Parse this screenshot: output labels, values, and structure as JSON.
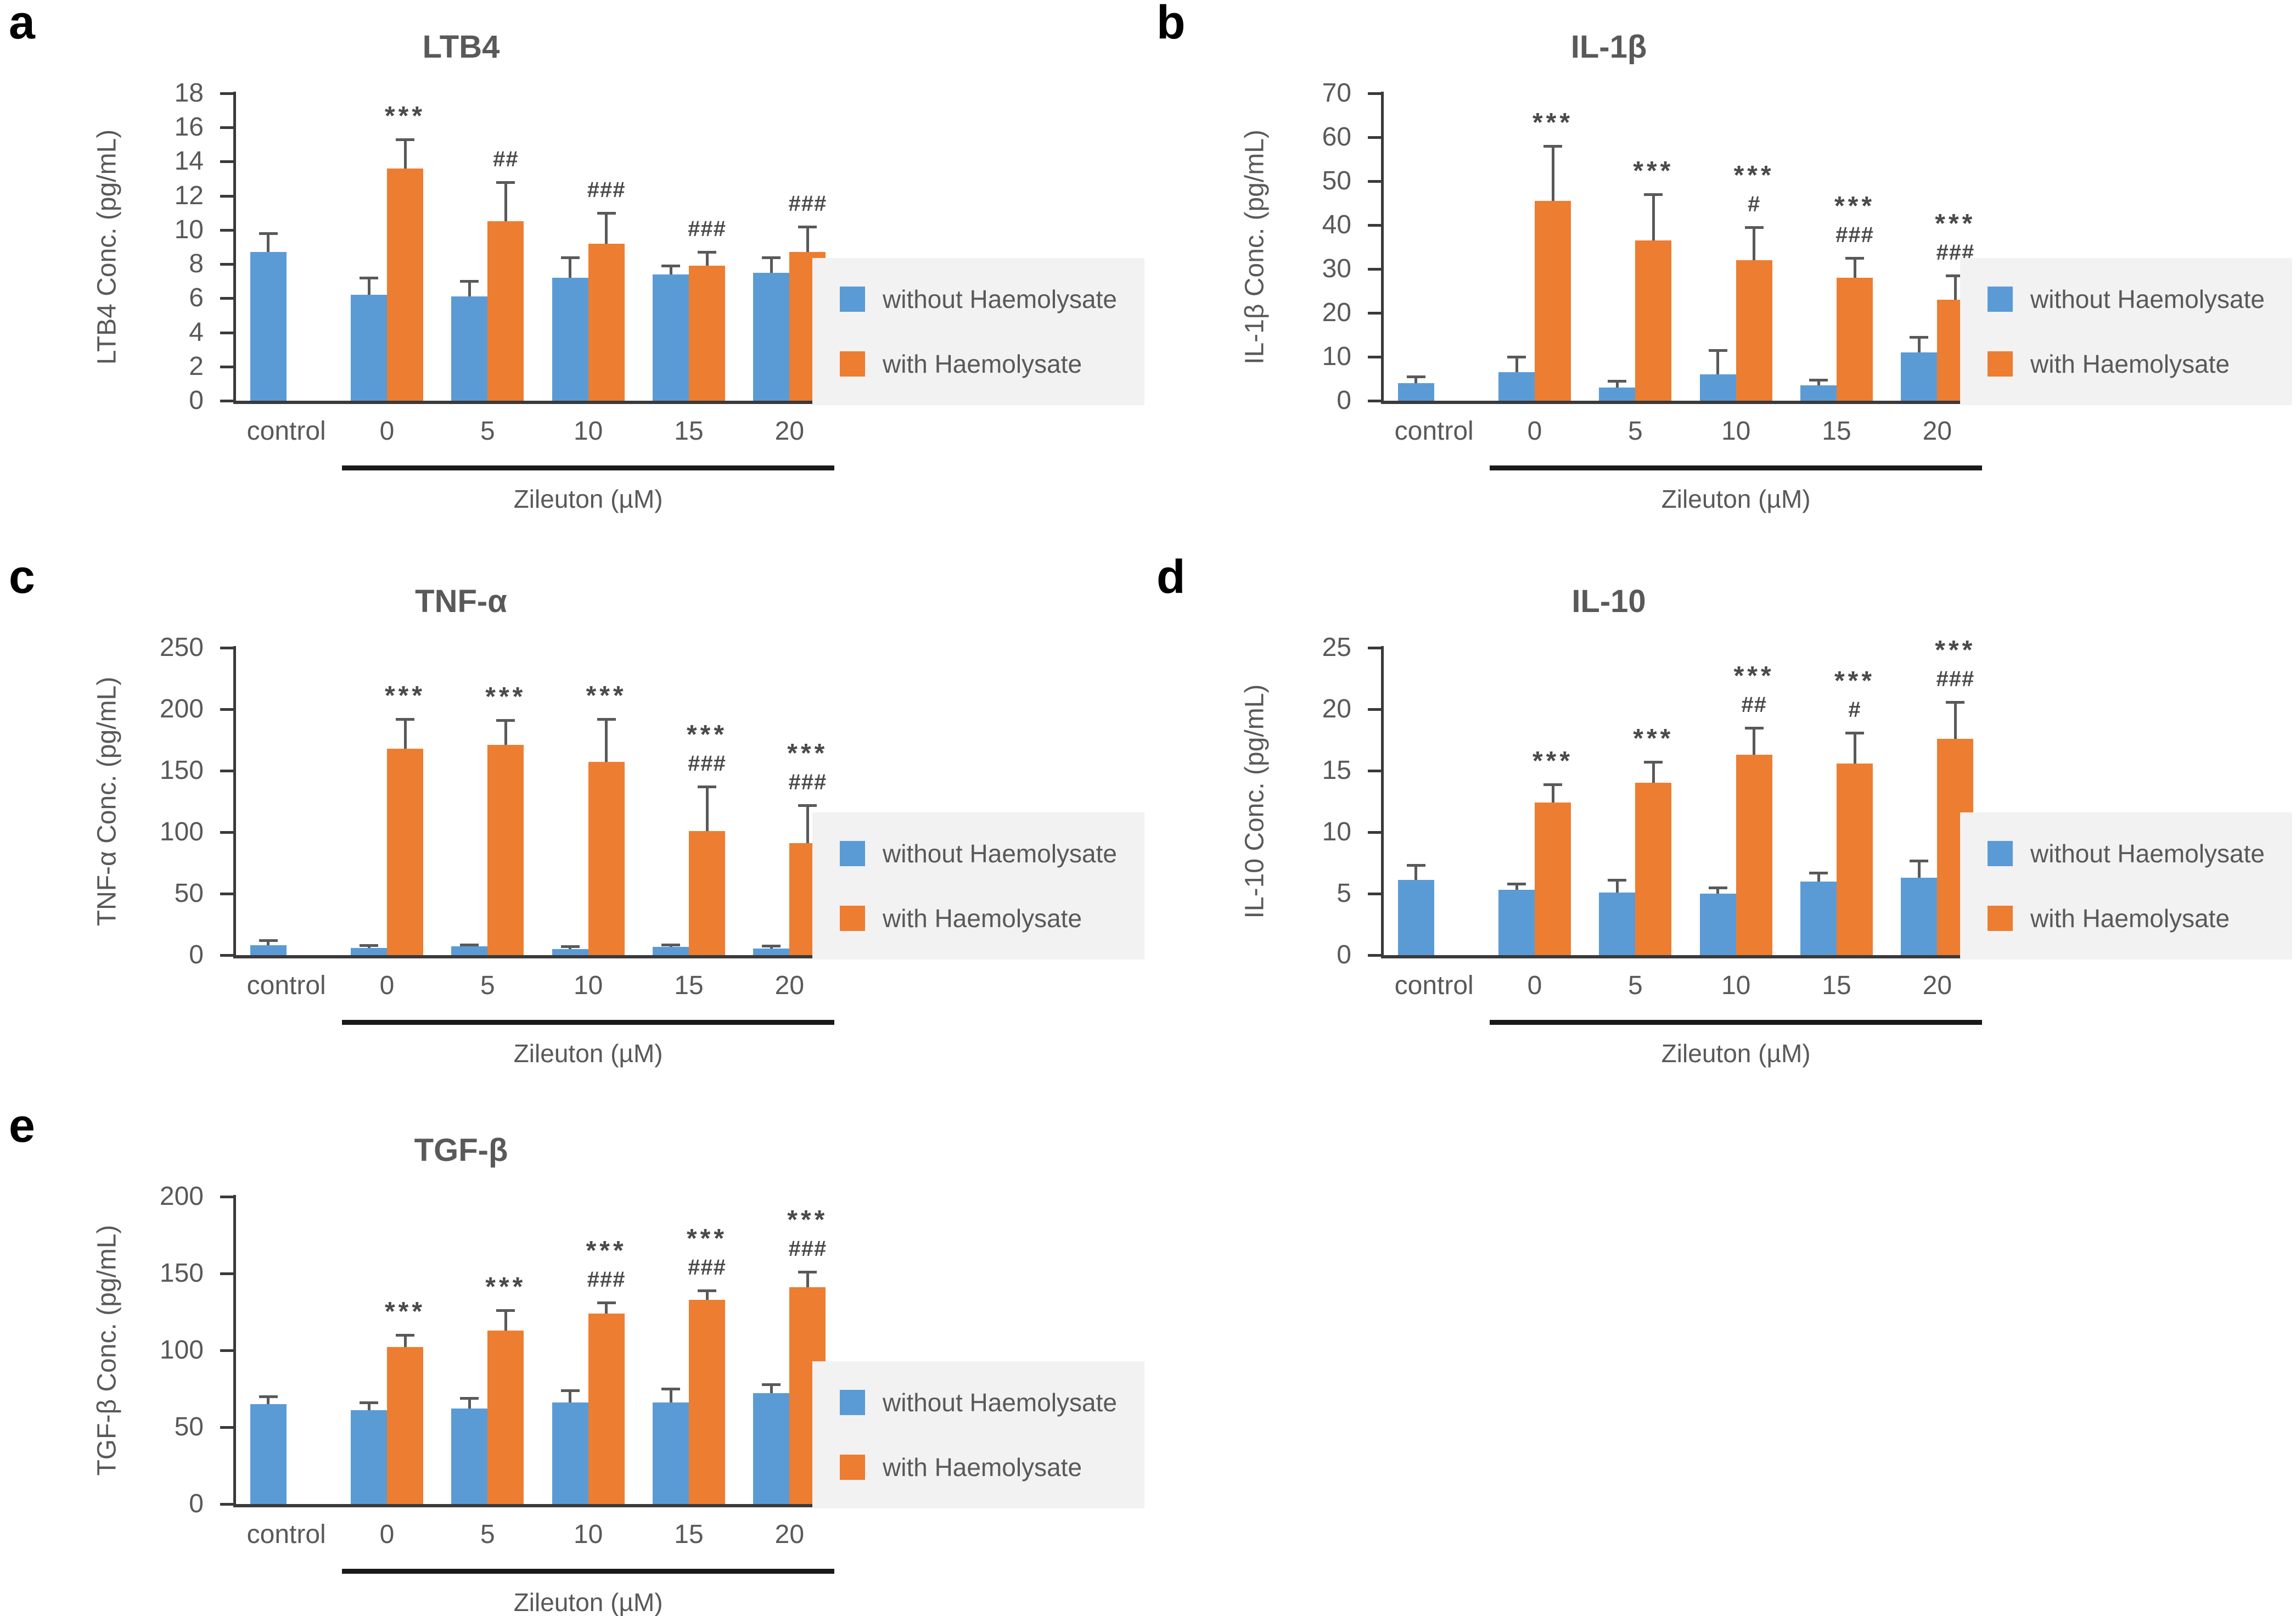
{
  "figure": {
    "background": "#FFFFFF",
    "panel_letters": [
      "a",
      "b",
      "c",
      "d",
      "e"
    ]
  },
  "colors": {
    "series_blue": "#5B9BD5",
    "series_orange": "#ED7D31",
    "text": "#595959",
    "axis": "#3a3a3a",
    "error_bar": "#595959",
    "annotation": "#4a4a4a",
    "legend_bg": "#F2F2F2",
    "bracket": "#1a1a1a",
    "panel_letter": "#000000"
  },
  "legend": {
    "items": [
      {
        "label": "without Haemolysate",
        "color_key": "blue"
      },
      {
        "label": "with Haemolysate",
        "color_key": "orange"
      }
    ]
  },
  "chart_data": [
    {
      "panel": "a",
      "type": "bar",
      "title": "LTB4",
      "ylabel": "LTB4 Conc. (pg/mL)",
      "xlabel": "Zileuton (µM)",
      "ylim": [
        0,
        18
      ],
      "ytick_step": 2,
      "categories": [
        "control",
        "0",
        "5",
        "10",
        "15",
        "20"
      ],
      "series": [
        {
          "name": "without Haemolysate",
          "color_key": "blue",
          "values": [
            8.7,
            6.2,
            6.1,
            7.2,
            7.4,
            7.5
          ],
          "errors": [
            1.1,
            1.0,
            0.9,
            1.2,
            0.5,
            0.9
          ]
        },
        {
          "name": "with Haemolysate",
          "color_key": "orange",
          "values": [
            null,
            13.6,
            10.5,
            9.2,
            7.9,
            8.7
          ],
          "errors": [
            null,
            1.7,
            2.3,
            1.8,
            0.8,
            1.5
          ]
        }
      ],
      "annotations": {
        "stars": [
          "",
          "***",
          "",
          "",
          "",
          ""
        ],
        "hashes": [
          "",
          "",
          "##",
          "###",
          "###",
          "###"
        ]
      }
    },
    {
      "panel": "b",
      "type": "bar",
      "title": "IL-1β",
      "ylabel": "IL-1β Conc. (pg/mL)",
      "xlabel": "Zileuton (µM)",
      "ylim": [
        0,
        70
      ],
      "ytick_step": 10,
      "categories": [
        "control",
        "0",
        "5",
        "10",
        "15",
        "20"
      ],
      "series": [
        {
          "name": "without Haemolysate",
          "color_key": "blue",
          "values": [
            4,
            6.5,
            3,
            6,
            3.5,
            11
          ],
          "errors": [
            1.5,
            3.5,
            1.5,
            5.5,
            1.3,
            3.5
          ]
        },
        {
          "name": "with Haemolysate",
          "color_key": "orange",
          "values": [
            null,
            45.5,
            36.5,
            32,
            28,
            23
          ],
          "errors": [
            null,
            12.5,
            10.5,
            7.5,
            4.5,
            5.5
          ]
        }
      ],
      "annotations": {
        "stars": [
          "",
          "***",
          "***",
          "***",
          "***",
          "***"
        ],
        "hashes": [
          "",
          "",
          "",
          "#",
          "###",
          "###"
        ]
      }
    },
    {
      "panel": "c",
      "type": "bar",
      "title": "TNF-α",
      "ylabel": "TNF-α Conc. (pg/mL)",
      "xlabel": "Zileuton (µM)",
      "ylim": [
        0,
        250
      ],
      "ytick_step": 50,
      "categories": [
        "control",
        "0",
        "5",
        "10",
        "15",
        "20"
      ],
      "series": [
        {
          "name": "without Haemolysate",
          "color_key": "blue",
          "values": [
            8,
            6,
            7,
            5,
            6.5,
            5.5
          ],
          "errors": [
            4,
            2,
            1.5,
            2,
            2,
            2
          ]
        },
        {
          "name": "with Haemolysate",
          "color_key": "orange",
          "values": [
            null,
            168,
            171,
            157,
            101,
            91
          ],
          "errors": [
            null,
            24,
            20,
            35,
            36,
            31
          ]
        }
      ],
      "annotations": {
        "stars": [
          "",
          "***",
          "***",
          "***",
          "***",
          "***"
        ],
        "hashes": [
          "",
          "",
          "",
          "",
          "###",
          "###"
        ]
      }
    },
    {
      "panel": "d",
      "type": "bar",
      "title": "IL-10",
      "ylabel": "IL-10 Conc. (pg/mL)",
      "xlabel": "Zileuton (µM)",
      "ylim": [
        0,
        25
      ],
      "ytick_step": 5,
      "categories": [
        "control",
        "0",
        "5",
        "10",
        "15",
        "20"
      ],
      "series": [
        {
          "name": "without Haemolysate",
          "color_key": "blue",
          "values": [
            6.1,
            5.3,
            5.1,
            5.0,
            6.0,
            6.3
          ],
          "errors": [
            1.2,
            0.5,
            1.0,
            0.5,
            0.7,
            1.4
          ]
        },
        {
          "name": "with Haemolysate",
          "color_key": "orange",
          "values": [
            null,
            12.4,
            14.0,
            16.3,
            15.6,
            17.6
          ],
          "errors": [
            null,
            1.5,
            1.7,
            2.2,
            2.5,
            3.0
          ]
        }
      ],
      "annotations": {
        "stars": [
          "",
          "***",
          "***",
          "***",
          "***",
          "***"
        ],
        "hashes": [
          "",
          "",
          "",
          "##",
          "#",
          "###"
        ]
      }
    },
    {
      "panel": "e",
      "type": "bar",
      "title": "TGF-β",
      "ylabel": "TGF-β Conc. (pg/mL)",
      "xlabel": "Zileuton (µM)",
      "ylim": [
        0,
        200
      ],
      "ytick_step": 50,
      "categories": [
        "control",
        "0",
        "5",
        "10",
        "15",
        "20"
      ],
      "series": [
        {
          "name": "without Haemolysate",
          "color_key": "blue",
          "values": [
            65,
            61,
            62,
            66,
            66,
            72
          ],
          "errors": [
            5,
            5,
            7,
            8,
            9,
            6
          ]
        },
        {
          "name": "with Haemolysate",
          "color_key": "orange",
          "values": [
            null,
            102,
            113,
            124,
            133,
            141
          ],
          "errors": [
            null,
            8,
            13,
            7,
            6,
            10
          ]
        }
      ],
      "annotations": {
        "stars": [
          "",
          "***",
          "***",
          "***",
          "***",
          "***"
        ],
        "hashes": [
          "",
          "",
          "",
          "###",
          "###",
          "###"
        ]
      }
    }
  ]
}
